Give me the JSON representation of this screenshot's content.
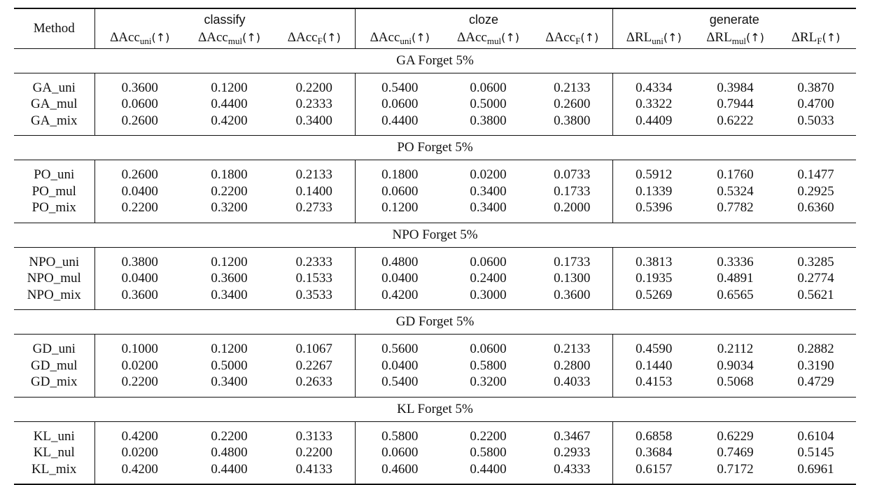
{
  "header": {
    "method": "Method",
    "groups": [
      "classify",
      "cloze",
      "generate"
    ],
    "metrics": [
      {
        "base": "ΔAcc",
        "sub": "uni",
        "arrow": "(↑)"
      },
      {
        "base": "ΔAcc",
        "sub": "mul",
        "arrow": "(↑)"
      },
      {
        "base": "ΔAcc",
        "sub": "F",
        "arrow": "(↑)"
      },
      {
        "base": "ΔAcc",
        "sub": "uni",
        "arrow": "(↑)"
      },
      {
        "base": "ΔAcc",
        "sub": "mul",
        "arrow": "(↑)"
      },
      {
        "base": "ΔAcc",
        "sub": "F",
        "arrow": "(↑)"
      },
      {
        "base": "ΔRL",
        "sub": "uni",
        "arrow": "(↑)"
      },
      {
        "base": "ΔRL",
        "sub": "mul",
        "arrow": "(↑)"
      },
      {
        "base": "ΔRL",
        "sub": "F",
        "arrow": "(↑)"
      }
    ]
  },
  "sections": [
    {
      "title": "GA Forget 5%",
      "rows": [
        {
          "method": "GA_uni",
          "values": [
            "0.3600",
            "0.1200",
            "0.2200",
            "0.5400",
            "0.0600",
            "0.2133",
            "0.4334",
            "0.3984",
            "0.3870"
          ],
          "bold": [
            0,
            3
          ]
        },
        {
          "method": "GA_mul",
          "values": [
            "0.0600",
            "0.4400",
            "0.2333",
            "0.0600",
            "0.5000",
            "0.2600",
            "0.3322",
            "0.7944",
            "0.4700"
          ],
          "bold": [
            1,
            4,
            7
          ]
        },
        {
          "method": "GA_mix",
          "values": [
            "0.2600",
            "0.4200",
            "0.3400",
            "0.4400",
            "0.3800",
            "0.3800",
            "0.4409",
            "0.6222",
            "0.5033"
          ],
          "bold": [
            2,
            5,
            6,
            8
          ]
        }
      ]
    },
    {
      "title": "PO Forget 5%",
      "rows": [
        {
          "method": "PO_uni",
          "values": [
            "0.2600",
            "0.1800",
            "0.2133",
            "0.1800",
            "0.0200",
            "0.0733",
            "0.5912",
            "0.1760",
            "0.1477"
          ],
          "bold": [
            0,
            3,
            6
          ]
        },
        {
          "method": "PO_mul",
          "values": [
            "0.0400",
            "0.2200",
            "0.1400",
            "0.0600",
            "0.3400",
            "0.1733",
            "0.1339",
            "0.5324",
            "0.2925"
          ],
          "bold": [
            4
          ]
        },
        {
          "method": "PO_mix",
          "values": [
            "0.2200",
            "0.3200",
            "0.2733",
            "0.1200",
            "0.3400",
            "0.2000",
            "0.5396",
            "0.7782",
            "0.6360"
          ],
          "bold": [
            1,
            2,
            4,
            5,
            7,
            8
          ]
        }
      ]
    },
    {
      "title": "NPO Forget 5%",
      "rows": [
        {
          "method": "NPO_uni",
          "values": [
            "0.3800",
            "0.1200",
            "0.2333",
            "0.4800",
            "0.0600",
            "0.1733",
            "0.3813",
            "0.3336",
            "0.3285"
          ],
          "bold": [
            0,
            3
          ]
        },
        {
          "method": "NPO_mul",
          "values": [
            "0.0400",
            "0.3600",
            "0.1533",
            "0.0400",
            "0.2400",
            "0.1300",
            "0.1935",
            "0.4891",
            "0.2774"
          ],
          "bold": [
            1
          ]
        },
        {
          "method": "NPO_mix",
          "values": [
            "0.3600",
            "0.3400",
            "0.3533",
            "0.4200",
            "0.3000",
            "0.3600",
            "0.5269",
            "0.6565",
            "0.5621"
          ],
          "bold": [
            2,
            4,
            5,
            6,
            7,
            8
          ]
        }
      ]
    },
    {
      "title": "GD Forget 5%",
      "rows": [
        {
          "method": "GD_uni",
          "values": [
            "0.1000",
            "0.1200",
            "0.1067",
            "0.5600",
            "0.0600",
            "0.2133",
            "0.4590",
            "0.2112",
            "0.2882"
          ],
          "bold": [
            3,
            6
          ]
        },
        {
          "method": "GD_mul",
          "values": [
            "0.0200",
            "0.5000",
            "0.2267",
            "0.0400",
            "0.5800",
            "0.2800",
            "0.1440",
            "0.9034",
            "0.3190"
          ],
          "bold": [
            1,
            4,
            7
          ]
        },
        {
          "method": "GD_mix",
          "values": [
            "0.2200",
            "0.3400",
            "0.2633",
            "0.5400",
            "0.3200",
            "0.4033",
            "0.4153",
            "0.5068",
            "0.4729"
          ],
          "bold": [
            0,
            2,
            5,
            8
          ]
        }
      ]
    },
    {
      "title": "KL Forget 5%",
      "rows": [
        {
          "method": "KL_uni",
          "values": [
            "0.4200",
            "0.2200",
            "0.3133",
            "0.5800",
            "0.2200",
            "0.3467",
            "0.6858",
            "0.6229",
            "0.6104"
          ],
          "bold": [
            0,
            3,
            6
          ]
        },
        {
          "method": "KL_nul",
          "values": [
            "0.0200",
            "0.4800",
            "0.2200",
            "0.0600",
            "0.5800",
            "0.2933",
            "0.3684",
            "0.7469",
            "0.5145"
          ],
          "bold": [
            1,
            4,
            7
          ]
        },
        {
          "method": "KL_mix",
          "values": [
            "0.4200",
            "0.4400",
            "0.4133",
            "0.4600",
            "0.4400",
            "0.4333",
            "0.6157",
            "0.7172",
            "0.6961"
          ],
          "bold": [
            0,
            2,
            5,
            8
          ]
        }
      ]
    }
  ]
}
